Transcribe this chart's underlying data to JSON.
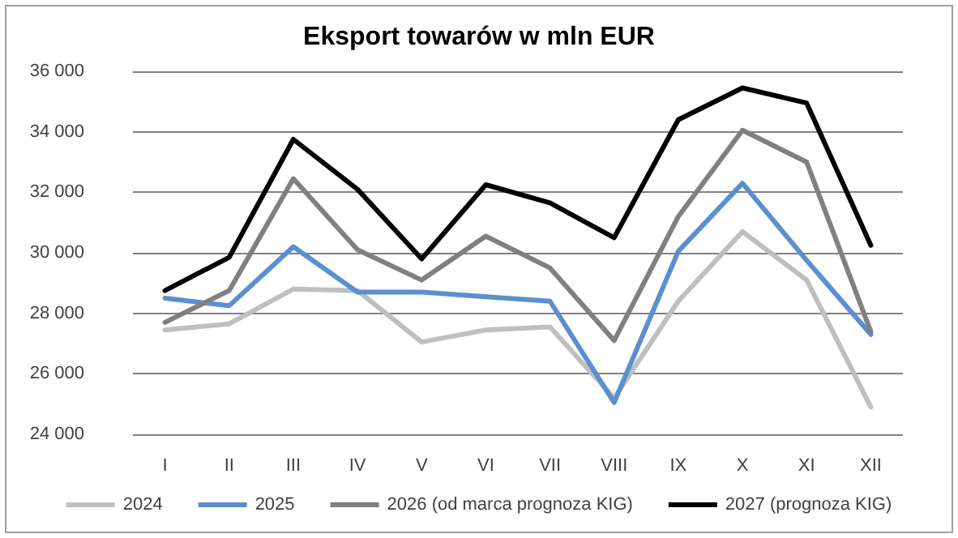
{
  "chart_data": {
    "type": "line",
    "title": "Eksport towarów w mln EUR",
    "categories": [
      "I",
      "II",
      "III",
      "IV",
      "V",
      "VI",
      "VII",
      "VIII",
      "IX",
      "X",
      "XI",
      "XII"
    ],
    "series": [
      {
        "name": "2024",
        "color": "#bfbfbf",
        "values": [
          27450,
          27650,
          28800,
          28750,
          27050,
          27450,
          27550,
          25200,
          28400,
          30700,
          29100,
          24900
        ]
      },
      {
        "name": "2025",
        "color": "#5b8fd0",
        "values": [
          28500,
          28250,
          30200,
          28700,
          28700,
          28550,
          28400,
          25050,
          30050,
          32300,
          29750,
          27300
        ]
      },
      {
        "name": "2026 (od marca prognoza KIG)",
        "color": "#808080",
        "values": [
          27700,
          28750,
          32450,
          30100,
          29100,
          30550,
          29500,
          27100,
          31200,
          34050,
          33000,
          27400
        ]
      },
      {
        "name": "2027 (prognoza KIG)",
        "color": "#000000",
        "values": [
          28750,
          29850,
          33750,
          32100,
          29800,
          32250,
          31650,
          30500,
          34400,
          35450,
          34950,
          30250
        ]
      }
    ],
    "ylim": [
      24000,
      36000
    ],
    "yticks": [
      {
        "value": 24000,
        "label": "24 000"
      },
      {
        "value": 26000,
        "label": "26 000"
      },
      {
        "value": 28000,
        "label": "28 000"
      },
      {
        "value": 30000,
        "label": "30 000"
      },
      {
        "value": 32000,
        "label": "32 000"
      },
      {
        "value": 34000,
        "label": "34 000"
      },
      {
        "value": 36000,
        "label": "36 000"
      }
    ],
    "grid": "y",
    "legend": "bottom",
    "marker": "none",
    "line_style": "solid"
  }
}
